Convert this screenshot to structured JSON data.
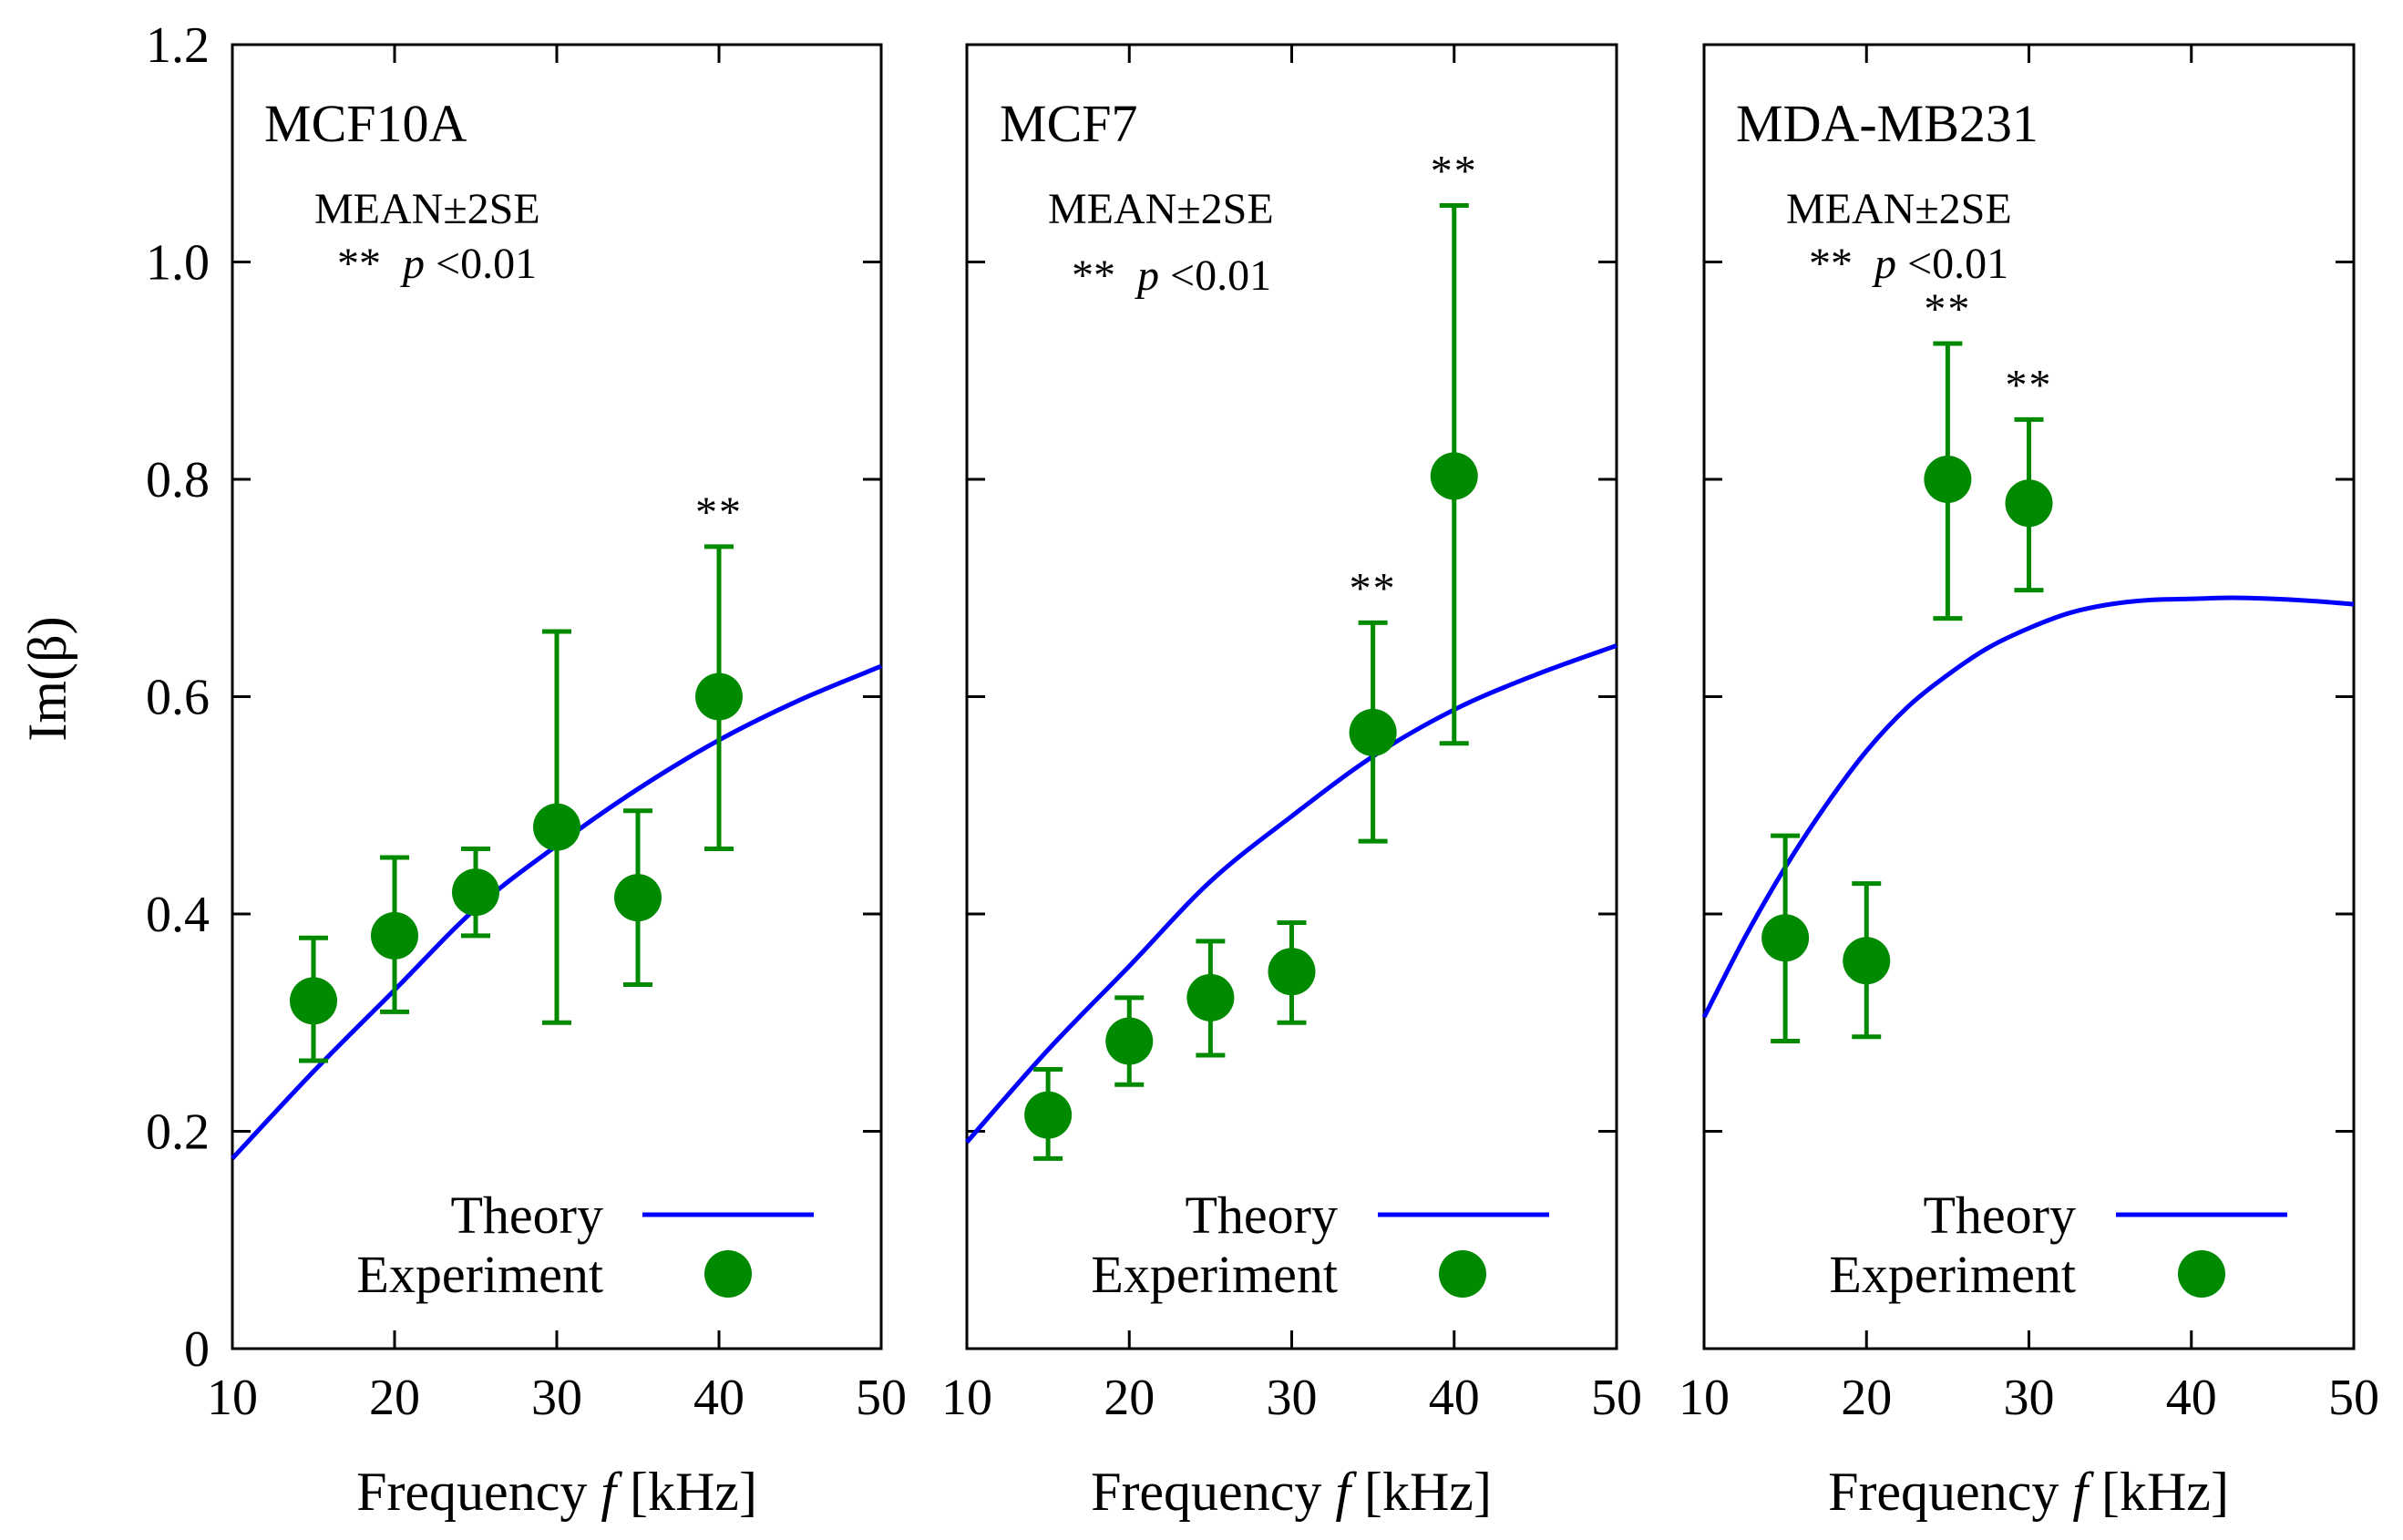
{
  "figure": {
    "ylabel": "Im(β)",
    "xlabel_prefix": "Frequency ",
    "xlabel_var": "f",
    "xlabel_suffix": " [kHz]",
    "legend_theory": "Theory",
    "legend_experiment": "Experiment",
    "stats_line1": "MEAN±2SE",
    "stats_stars": "**",
    "stats_p": "p",
    "stats_threshold": "<0.01",
    "colors": {
      "theory": "#0000ff",
      "experiment": "#008a00",
      "axis": "#000000"
    }
  },
  "chart_data": [
    {
      "type": "scatter",
      "title": "MCF10A",
      "xlabel": "Frequency f [kHz]",
      "ylabel": "Im(β)",
      "xlim": [
        10,
        50
      ],
      "ylim": [
        0,
        1.2
      ],
      "xticks": [
        "10",
        "20",
        "30",
        "40",
        "50"
      ],
      "yticks": [
        "0",
        "0.2",
        "0.4",
        "0.6",
        "0.8",
        "1.0",
        "1.2"
      ],
      "series": [
        {
          "name": "Experiment",
          "kind": "points_with_error",
          "x": [
            15,
            20,
            25,
            30,
            35,
            40
          ],
          "y": [
            0.32,
            0.38,
            0.42,
            0.48,
            0.415,
            0.6
          ],
          "err_low": [
            0.265,
            0.31,
            0.38,
            0.3,
            0.335,
            0.46
          ],
          "err_high": [
            0.378,
            0.452,
            0.46,
            0.66,
            0.495,
            0.738
          ],
          "significant": [
            false,
            false,
            false,
            false,
            false,
            true
          ]
        },
        {
          "name": "Theory",
          "kind": "line",
          "x": [
            10,
            15,
            20,
            25,
            30,
            35,
            40,
            45,
            50
          ],
          "y": [
            0.175,
            0.255,
            0.33,
            0.405,
            0.463,
            0.515,
            0.56,
            0.597,
            0.628
          ]
        }
      ],
      "annotations": [
        "MEAN±2SE",
        "** p<0.01"
      ]
    },
    {
      "type": "scatter",
      "title": "MCF7",
      "xlabel": "Frequency f [kHz]",
      "ylabel": "Im(β)",
      "xlim": [
        10,
        50
      ],
      "ylim": [
        0,
        1.2
      ],
      "xticks": [
        "10",
        "20",
        "30",
        "40",
        "50"
      ],
      "yticks": [
        "0",
        "0.2",
        "0.4",
        "0.6",
        "0.8",
        "1.0",
        "1.2"
      ],
      "series": [
        {
          "name": "Experiment",
          "kind": "points_with_error",
          "x": [
            15,
            20,
            25,
            30,
            35,
            40
          ],
          "y": [
            0.215,
            0.283,
            0.323,
            0.347,
            0.567,
            0.803
          ],
          "err_low": [
            0.175,
            0.243,
            0.27,
            0.3,
            0.467,
            0.557
          ],
          "err_high": [
            0.257,
            0.323,
            0.375,
            0.392,
            0.668,
            1.052
          ],
          "significant": [
            false,
            false,
            false,
            false,
            true,
            true
          ]
        },
        {
          "name": "Theory",
          "kind": "line",
          "x": [
            10,
            15,
            20,
            25,
            30,
            35,
            40,
            45,
            50
          ],
          "y": [
            0.19,
            0.275,
            0.352,
            0.43,
            0.49,
            0.545,
            0.588,
            0.62,
            0.647
          ]
        }
      ],
      "annotations": [
        "MEAN±2SE",
        "** p<0.01"
      ]
    },
    {
      "type": "scatter",
      "title": "MDA-MB231",
      "xlabel": "Frequency f [kHz]",
      "ylabel": "Im(β)",
      "xlim": [
        10,
        50
      ],
      "ylim": [
        0,
        1.2
      ],
      "xticks": [
        "10",
        "20",
        "30",
        "40",
        "50"
      ],
      "yticks": [
        "0",
        "0.2",
        "0.4",
        "0.6",
        "0.8",
        "1.0",
        "1.2"
      ],
      "series": [
        {
          "name": "Experiment",
          "kind": "points_with_error",
          "x": [
            15,
            20,
            25,
            30
          ],
          "y": [
            0.378,
            0.357,
            0.8,
            0.778
          ],
          "err_low": [
            0.283,
            0.287,
            0.672,
            0.698
          ],
          "err_high": [
            0.472,
            0.428,
            0.925,
            0.855
          ],
          "significant": [
            false,
            false,
            true,
            true
          ]
        },
        {
          "name": "Theory",
          "kind": "line",
          "x": [
            10,
            12.5,
            15,
            17.5,
            20,
            22.5,
            25,
            27.5,
            30,
            32.5,
            35,
            37.5,
            40,
            42.5,
            45,
            47.5,
            50
          ],
          "y": [
            0.305,
            0.378,
            0.443,
            0.5,
            0.55,
            0.59,
            0.62,
            0.645,
            0.663,
            0.677,
            0.685,
            0.689,
            0.69,
            0.691,
            0.69,
            0.688,
            0.685
          ]
        }
      ],
      "annotations": [
        "MEAN±2SE",
        "** p<0.01"
      ]
    }
  ]
}
